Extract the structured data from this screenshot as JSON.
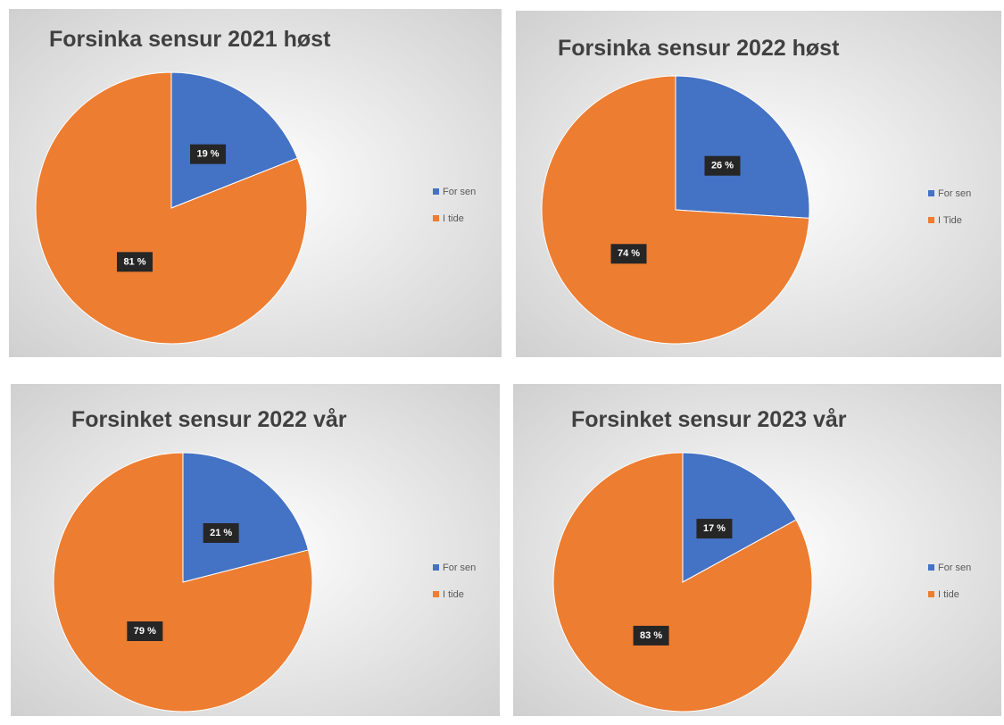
{
  "chart_data": [
    {
      "type": "pie",
      "title": "Forsinka sensur 2021 høst",
      "categories": [
        "For sen",
        "I tide"
      ],
      "values": [
        19,
        81
      ],
      "value_labels": [
        "19 %",
        "81 %"
      ],
      "colors": [
        "#4472c4",
        "#ed7d31"
      ],
      "legend": "right"
    },
    {
      "type": "pie",
      "title": "Forsinka sensur 2022 høst",
      "categories": [
        "For sen",
        "I Tide"
      ],
      "values": [
        26,
        74
      ],
      "value_labels": [
        "26 %",
        "74 %"
      ],
      "colors": [
        "#4472c4",
        "#ed7d31"
      ],
      "legend": "right"
    },
    {
      "type": "pie",
      "title": "Forsinket sensur 2022 vår",
      "categories": [
        "For sen",
        "I tide"
      ],
      "values": [
        21,
        79
      ],
      "value_labels": [
        "21 %",
        "79 %"
      ],
      "colors": [
        "#4472c4",
        "#ed7d31"
      ],
      "legend": "right"
    },
    {
      "type": "pie",
      "title": "Forsinket sensur 2023 vår",
      "categories": [
        "For sen",
        "I tide"
      ],
      "values": [
        17,
        83
      ],
      "value_labels": [
        "17 %",
        "83 %"
      ],
      "colors": [
        "#4472c4",
        "#ed7d31"
      ],
      "legend": "right"
    }
  ]
}
